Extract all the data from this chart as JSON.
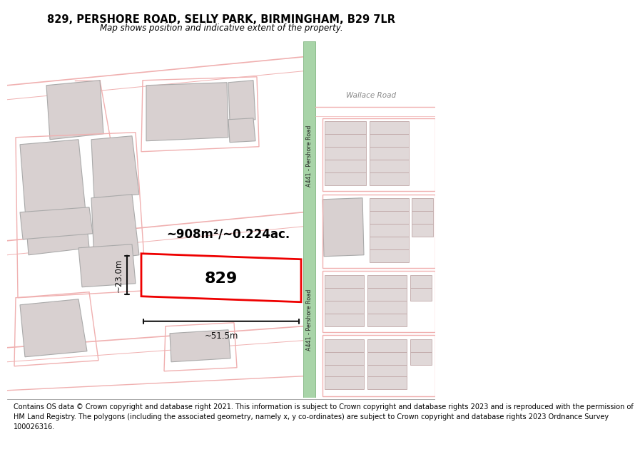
{
  "title": "829, PERSHORE ROAD, SELLY PARK, BIRMINGHAM, B29 7LR",
  "subtitle": "Map shows position and indicative extent of the property.",
  "footer_line1": "Contains OS data © Crown copyright and database right 2021. This information is subject to Crown copyright and database rights 2023 and is reproduced with the permission of",
  "footer_line2": "HM Land Registry. The polygons (including the associated geometry, namely x, y co-ordinates) are subject to Crown copyright and database rights 2023 Ordnance Survey",
  "footer_line3": "100026316.",
  "map_bg": "#f7f2f2",
  "road_green_fill": "#a8d4a8",
  "road_green_edge": "#70aa70",
  "building_gray_fill": "#d8d0d0",
  "building_gray_edge": "#aaaaaa",
  "pink_road": "#f0b0b0",
  "pink_thin": "#e8c0c0",
  "target_fill": "#ffffff",
  "target_edge": "#ee0000",
  "dim_color": "#111111",
  "area_text": "~908m²/~0.224ac.",
  "prop_label": "829",
  "width_label": "~51.5m",
  "height_label": "~23.0m",
  "road_label": "A441 - Pershore Road",
  "wallace_road": "Wallace Road",
  "title_fontsize": 10.5,
  "subtitle_fontsize": 8.5,
  "footer_fontsize": 7.0
}
